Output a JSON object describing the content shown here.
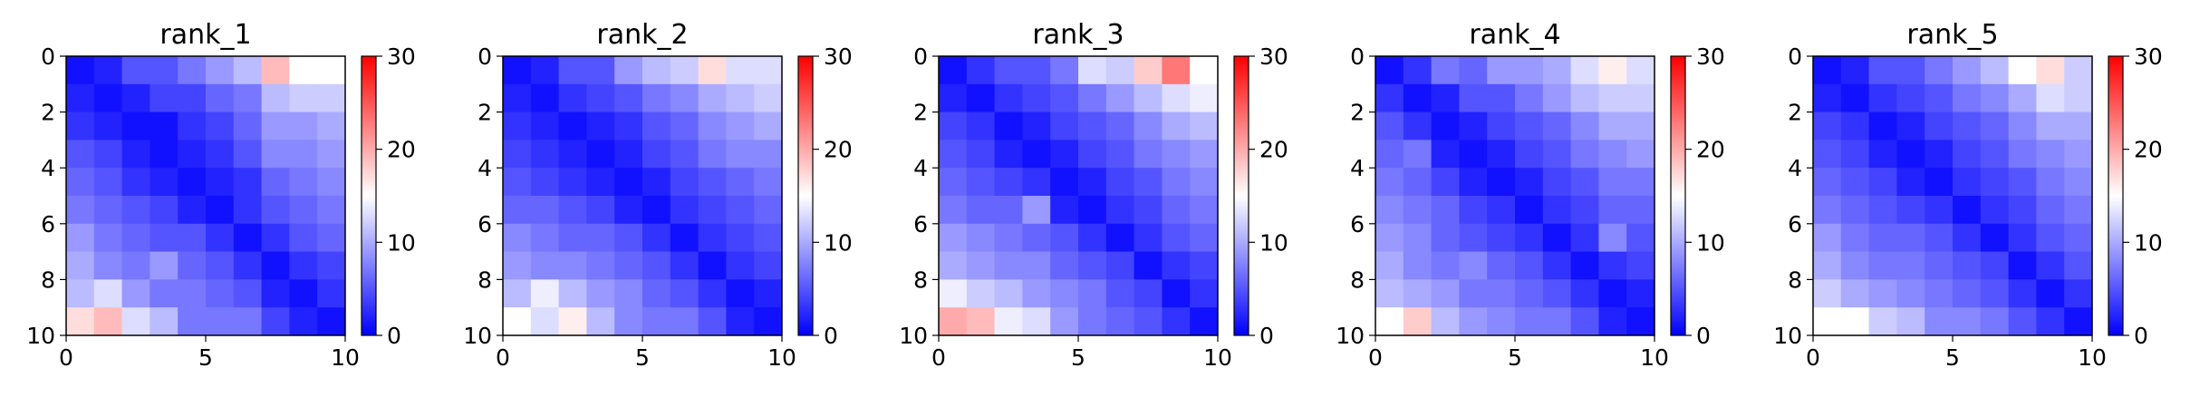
{
  "chart_data": [
    {
      "type": "heatmap",
      "title": "rank_1",
      "xlim": [
        0,
        10
      ],
      "ylim": [
        10,
        0
      ],
      "x_ticks": [
        0,
        5,
        10
      ],
      "y_ticks": [
        0,
        2,
        4,
        6,
        8,
        10
      ],
      "colorbar": {
        "range": [
          0,
          30
        ],
        "ticks": [
          0,
          10,
          20,
          30
        ],
        "colormap": "bwr"
      },
      "values": [
        [
          1,
          2,
          5,
          5,
          7,
          9,
          11,
          19,
          15,
          15
        ],
        [
          2,
          1,
          2,
          4,
          4,
          6,
          7,
          11,
          12,
          12
        ],
        [
          3,
          2,
          1,
          1,
          3,
          4,
          6,
          9,
          9,
          10
        ],
        [
          5,
          4,
          2,
          1,
          2,
          3,
          5,
          8,
          8,
          9
        ],
        [
          6,
          5,
          3,
          2,
          1,
          2,
          3,
          6,
          7,
          8
        ],
        [
          7,
          6,
          5,
          4,
          2,
          1,
          3,
          5,
          6,
          7
        ],
        [
          9,
          7,
          6,
          5,
          5,
          3,
          1,
          3,
          5,
          6
        ],
        [
          10,
          8,
          7,
          9,
          6,
          5,
          3,
          1,
          3,
          4
        ],
        [
          11,
          13,
          9,
          7,
          7,
          6,
          5,
          2,
          1,
          3
        ],
        [
          17,
          19,
          13,
          11,
          7,
          7,
          7,
          4,
          2,
          1
        ]
      ]
    },
    {
      "type": "heatmap",
      "title": "rank_2",
      "xlim": [
        0,
        10
      ],
      "ylim": [
        10,
        0
      ],
      "x_ticks": [
        0,
        5,
        10
      ],
      "y_ticks": [
        0,
        2,
        4,
        6,
        8,
        10
      ],
      "colorbar": {
        "range": [
          0,
          30
        ],
        "ticks": [
          0,
          10,
          20,
          30
        ],
        "colormap": "bwr"
      },
      "values": [
        [
          1,
          2,
          5,
          5,
          9,
          11,
          12,
          17,
          13,
          13
        ],
        [
          2,
          1,
          3,
          4,
          5,
          7,
          8,
          10,
          11,
          12
        ],
        [
          3,
          2,
          1,
          2,
          3,
          5,
          6,
          8,
          9,
          10
        ],
        [
          4,
          3,
          2,
          1,
          2,
          4,
          5,
          7,
          8,
          8
        ],
        [
          5,
          4,
          3,
          2,
          1,
          2,
          4,
          5,
          6,
          7
        ],
        [
          6,
          6,
          5,
          4,
          2,
          1,
          3,
          4,
          5,
          6
        ],
        [
          8,
          7,
          6,
          6,
          5,
          3,
          1,
          3,
          4,
          5
        ],
        [
          9,
          8,
          8,
          7,
          6,
          5,
          3,
          1,
          3,
          4
        ],
        [
          11,
          14,
          11,
          9,
          8,
          6,
          5,
          3,
          1,
          2
        ],
        [
          15,
          13,
          16,
          11,
          8,
          7,
          7,
          5,
          2,
          1
        ]
      ]
    },
    {
      "type": "heatmap",
      "title": "rank_3",
      "xlim": [
        0,
        10
      ],
      "ylim": [
        10,
        0
      ],
      "x_ticks": [
        0,
        5,
        10
      ],
      "y_ticks": [
        0,
        2,
        4,
        6,
        8,
        10
      ],
      "colorbar": {
        "range": [
          0,
          30
        ],
        "ticks": [
          0,
          10,
          20,
          30
        ],
        "colormap": "bwr"
      },
      "values": [
        [
          1,
          3,
          5,
          5,
          7,
          13,
          12,
          18,
          23,
          15
        ],
        [
          2,
          1,
          3,
          4,
          5,
          7,
          9,
          11,
          13,
          14
        ],
        [
          4,
          3,
          1,
          2,
          4,
          5,
          6,
          8,
          10,
          11
        ],
        [
          5,
          4,
          2,
          1,
          2,
          4,
          5,
          7,
          8,
          9
        ],
        [
          6,
          5,
          4,
          3,
          1,
          2,
          4,
          5,
          7,
          8
        ],
        [
          7,
          6,
          6,
          9,
          2,
          1,
          3,
          4,
          6,
          7
        ],
        [
          9,
          8,
          7,
          6,
          5,
          3,
          1,
          3,
          5,
          6
        ],
        [
          10,
          9,
          8,
          8,
          6,
          5,
          4,
          1,
          3,
          4
        ],
        [
          14,
          12,
          11,
          9,
          8,
          7,
          5,
          4,
          1,
          3
        ],
        [
          20,
          19,
          14,
          13,
          9,
          7,
          6,
          5,
          3,
          1
        ]
      ]
    },
    {
      "type": "heatmap",
      "title": "rank_4",
      "xlim": [
        0,
        10
      ],
      "ylim": [
        10,
        0
      ],
      "x_ticks": [
        0,
        5,
        10
      ],
      "y_ticks": [
        0,
        2,
        4,
        6,
        8,
        10
      ],
      "colorbar": {
        "range": [
          0,
          30
        ],
        "ticks": [
          0,
          10,
          20,
          30
        ],
        "colormap": "bwr"
      },
      "values": [
        [
          1,
          3,
          7,
          6,
          9,
          9,
          10,
          13,
          16,
          13
        ],
        [
          3,
          1,
          2,
          5,
          5,
          7,
          9,
          11,
          12,
          12
        ],
        [
          5,
          3,
          1,
          2,
          4,
          5,
          6,
          8,
          10,
          10
        ],
        [
          6,
          7,
          2,
          1,
          2,
          4,
          5,
          7,
          8,
          9
        ],
        [
          7,
          6,
          4,
          2,
          1,
          2,
          4,
          5,
          7,
          7
        ],
        [
          8,
          7,
          6,
          4,
          3,
          1,
          3,
          4,
          6,
          6
        ],
        [
          9,
          8,
          6,
          5,
          4,
          3,
          1,
          3,
          8,
          5
        ],
        [
          10,
          8,
          7,
          8,
          6,
          5,
          3,
          1,
          3,
          4
        ],
        [
          11,
          10,
          9,
          7,
          7,
          6,
          5,
          3,
          1,
          2
        ],
        [
          15,
          18,
          11,
          9,
          8,
          7,
          7,
          5,
          2,
          1
        ]
      ]
    },
    {
      "type": "heatmap",
      "title": "rank_5",
      "xlim": [
        0,
        10
      ],
      "ylim": [
        10,
        0
      ],
      "x_ticks": [
        0,
        5,
        10
      ],
      "y_ticks": [
        0,
        2,
        4,
        6,
        8,
        10
      ],
      "colorbar": {
        "range": [
          0,
          30
        ],
        "ticks": [
          0,
          10,
          20,
          30
        ],
        "colormap": "bwr"
      },
      "values": [
        [
          1,
          2,
          5,
          5,
          7,
          9,
          11,
          15,
          17,
          12
        ],
        [
          2,
          1,
          3,
          4,
          5,
          7,
          8,
          10,
          13,
          12
        ],
        [
          4,
          3,
          1,
          2,
          4,
          5,
          6,
          8,
          10,
          10
        ],
        [
          5,
          4,
          2,
          1,
          2,
          4,
          5,
          7,
          8,
          9
        ],
        [
          6,
          5,
          4,
          2,
          1,
          3,
          4,
          5,
          7,
          8
        ],
        [
          7,
          6,
          5,
          4,
          3,
          1,
          3,
          4,
          6,
          7
        ],
        [
          9,
          7,
          6,
          6,
          5,
          3,
          1,
          3,
          5,
          6
        ],
        [
          10,
          8,
          7,
          7,
          6,
          5,
          4,
          1,
          3,
          5
        ],
        [
          12,
          10,
          9,
          8,
          7,
          6,
          5,
          3,
          1,
          3
        ],
        [
          15,
          15,
          12,
          11,
          8,
          8,
          7,
          5,
          3,
          1
        ]
      ]
    }
  ]
}
